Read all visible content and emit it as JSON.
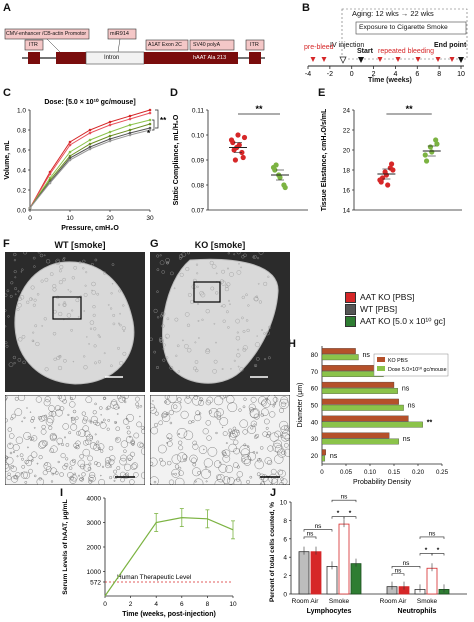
{
  "panels": {
    "A": "A",
    "B": "B",
    "C": "C",
    "D": "D",
    "E": "E",
    "F": "F",
    "G": "G",
    "H": "H",
    "I": "I",
    "J": "J"
  },
  "panelA": {
    "labels": {
      "promoter": "CMV-enhancer /CB-actin Promotor",
      "mir": "miR914",
      "itr_left": "ITR",
      "itr_right": "ITR",
      "intron": "Intron",
      "exon": "A1AT Exon 2C",
      "polya": "SV40 polyA",
      "haat": "hAAT Ala 213"
    }
  },
  "panelB": {
    "aging": "Aging: 12 wks → 22 wks",
    "exposure": "Exposure to Cigarette Smoke",
    "prebleed": "pre-bleed",
    "iv": "IV injection",
    "start": "Start",
    "repeated": "repeated bleeding",
    "endpoint": "End point",
    "xlabel": "Time (weeks)",
    "ticks": [
      "-4",
      "-2",
      "0",
      "2",
      "4",
      "6",
      "8",
      "10"
    ]
  },
  "chart_data": [
    {
      "panel": "C",
      "type": "line",
      "title": "Dose: [5.0 × 10¹⁰ gc/mouse]",
      "xlabel": "Pressure, cmH₂O",
      "ylabel": "Volume, mL",
      "xlim": [
        0,
        30
      ],
      "ylim": [
        0,
        1.0
      ],
      "xticks": [
        "0",
        "10",
        "20",
        "30"
      ],
      "yticks": [
        "0.0",
        "0.2",
        "0.4",
        "0.6",
        "0.8",
        "1.0"
      ],
      "x": [
        0,
        5,
        10,
        15,
        20,
        25,
        30
      ],
      "series": [
        {
          "color": "#d62728",
          "values": [
            0.02,
            0.38,
            0.68,
            0.8,
            0.88,
            0.94,
            1.0
          ]
        },
        {
          "color": "#e8505b",
          "values": [
            0.02,
            0.36,
            0.65,
            0.77,
            0.85,
            0.91,
            0.97
          ]
        },
        {
          "color": "#8bc34a",
          "values": [
            0.02,
            0.32,
            0.58,
            0.7,
            0.78,
            0.85,
            0.9
          ]
        },
        {
          "color": "#6b8e23",
          "values": [
            0.02,
            0.3,
            0.54,
            0.66,
            0.74,
            0.8,
            0.86
          ]
        },
        {
          "color": "#555555",
          "values": [
            0.02,
            0.28,
            0.52,
            0.63,
            0.71,
            0.77,
            0.82
          ]
        },
        {
          "color": "#999999",
          "values": [
            0.02,
            0.27,
            0.5,
            0.61,
            0.69,
            0.75,
            0.8
          ]
        }
      ],
      "annotations": [
        "**",
        "*"
      ]
    },
    {
      "panel": "D",
      "type": "scatter",
      "ylabel": "Static Compliance, mL/H₂O",
      "ylim": [
        0.07,
        0.11
      ],
      "yticks": [
        "0.07",
        "0.08",
        "0.09",
        "0.10",
        "0.11"
      ],
      "groups": [
        {
          "color": "#d62728",
          "values": [
            0.098,
            0.095,
            0.093,
            0.097,
            0.1,
            0.091,
            0.094,
            0.096,
            0.099,
            0.09
          ],
          "mean": 0.095
        },
        {
          "color": "#7cb342",
          "values": [
            0.087,
            0.084,
            0.08,
            0.086,
            0.083,
            0.079,
            0.088
          ],
          "mean": 0.084
        }
      ],
      "significance": "**"
    },
    {
      "panel": "E",
      "type": "scatter",
      "ylabel": "Tissue Elastance, cmH₂O/s/mL",
      "ylim": [
        14,
        24
      ],
      "yticks": [
        "14",
        "16",
        "18",
        "20",
        "22",
        "24"
      ],
      "groups": [
        {
          "color": "#d62728",
          "values": [
            17.0,
            17.8,
            18.2,
            16.8,
            17.5,
            18.6,
            17.2,
            16.5,
            18.0
          ],
          "mean": 17.6
        },
        {
          "color": "#7cb342",
          "values": [
            19.5,
            20.3,
            21.0,
            18.9,
            19.8,
            20.6
          ],
          "mean": 19.9
        }
      ],
      "significance": "**"
    },
    {
      "panel": "H",
      "type": "bar",
      "orientation": "horizontal",
      "xlabel": "Probability Density",
      "ylabel": "Diameter (μm)",
      "xlim": [
        0,
        0.25
      ],
      "xticks": [
        "0",
        "0.05",
        "0.10",
        "0.15",
        "0.20",
        "0.25"
      ],
      "categories": [
        "20",
        "30",
        "40",
        "50",
        "60",
        "70",
        "80"
      ],
      "series": [
        {
          "name": "KO PBS",
          "color": "#b5502a",
          "values": [
            0.008,
            0.14,
            0.18,
            0.16,
            0.15,
            0.12,
            0.07
          ]
        },
        {
          "name": "Dose 5.0×10¹⁰ gc/mouse",
          "color": "#8bc34a",
          "values": [
            0.006,
            0.16,
            0.21,
            0.17,
            0.158,
            0.128,
            0.076
          ]
        }
      ],
      "annotations": [
        "ns",
        "ns",
        "**",
        "ns",
        "ns",
        "ns",
        "ns"
      ]
    },
    {
      "panel": "I",
      "type": "line",
      "xlabel": "Time (weeks, post-injection)",
      "ylabel": "Serum Levels of hAAT, μg/mL",
      "xlim": [
        0,
        10
      ],
      "xticks": [
        "0",
        "2",
        "4",
        "6",
        "8",
        "10"
      ],
      "yticks": [
        "572",
        "1000",
        "2000",
        "3000",
        "4000"
      ],
      "x": [
        0,
        4,
        6,
        8,
        10
      ],
      "values": [
        0,
        3000,
        3200,
        3150,
        2700
      ],
      "reference": {
        "value": 572,
        "label": "Human Therapeutic Level"
      }
    },
    {
      "panel": "J",
      "type": "bar",
      "ylabel": "Percent of total cells counted, %",
      "ylim": [
        0,
        10
      ],
      "yticks": [
        "0",
        "2",
        "4",
        "6",
        "8",
        "10"
      ],
      "groups": [
        "Lymphocytes",
        "Neutrophils"
      ],
      "subgroups": [
        "Room Air",
        "Smoke"
      ],
      "bars": [
        {
          "group": "Lymphocytes",
          "condition": "Room Air",
          "series": "WT",
          "value": 4.6
        },
        {
          "group": "Lymphocytes",
          "condition": "Room Air",
          "series": "AAT KO",
          "value": 4.6
        },
        {
          "group": "Lymphocytes",
          "condition": "Smoke",
          "series": "WT",
          "value": 3.0
        },
        {
          "group": "Lymphocytes",
          "condition": "Smoke",
          "series": "AAT KO",
          "value": 7.6
        },
        {
          "group": "Lymphocytes",
          "condition": "Smoke",
          "series": "Dose",
          "value": 3.3
        },
        {
          "group": "Neutrophils",
          "condition": "Room Air",
          "series": "WT",
          "value": 0.8
        },
        {
          "group": "Neutrophils",
          "condition": "Room Air",
          "series": "AAT KO",
          "value": 0.8
        },
        {
          "group": "Neutrophils",
          "condition": "Smoke",
          "series": "WT",
          "value": 0.5
        },
        {
          "group": "Neutrophils",
          "condition": "Smoke",
          "series": "AAT KO",
          "value": 2.8
        },
        {
          "group": "Neutrophils",
          "condition": "Smoke",
          "series": "Dose",
          "value": 0.5
        }
      ],
      "annotations": [
        "ns",
        "ns",
        "*",
        "*",
        "ns",
        "ns",
        "ns",
        "*",
        "*",
        "ns"
      ]
    }
  ],
  "panelF": {
    "title": "WT [smoke]"
  },
  "panelG": {
    "title": "KO [smoke]"
  },
  "legendFG": {
    "items": [
      {
        "label": "AAT KO [PBS]",
        "color": "#d62728"
      },
      {
        "label": "WT [PBS]",
        "color": "#555555"
      },
      {
        "label": "AAT KO [5.0 x 10¹⁰ gc]",
        "color": "#2e7d32"
      }
    ]
  }
}
